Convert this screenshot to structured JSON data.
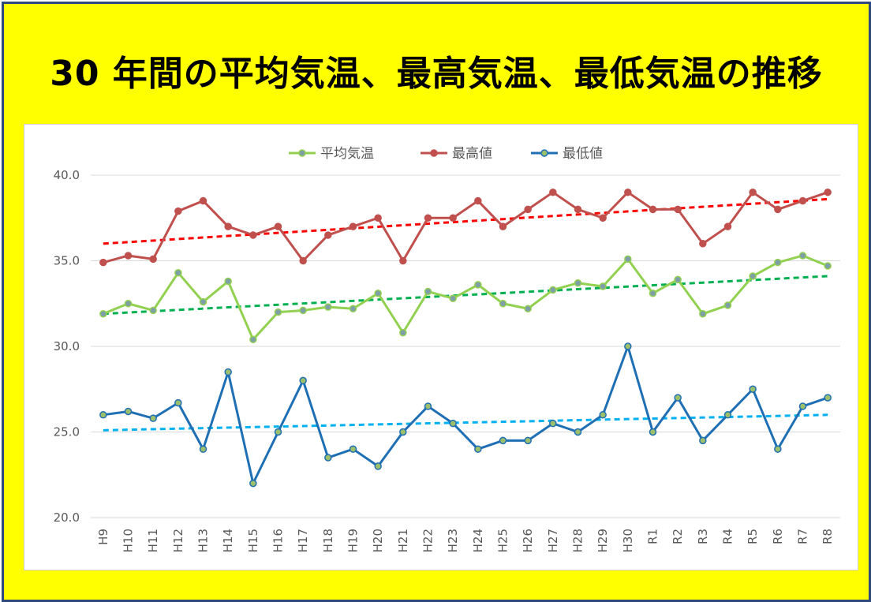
{
  "title": "30 年間の平均気温、最高気温、最低気温の推移",
  "chart_data": {
    "type": "line",
    "title": "",
    "xlabel": "",
    "ylabel": "",
    "categories": [
      "H9",
      "H10",
      "H11",
      "H12",
      "H13",
      "H14",
      "H15",
      "H16",
      "H17",
      "H18",
      "H19",
      "H20",
      "H21",
      "H22",
      "H23",
      "H24",
      "H25",
      "H26",
      "H27",
      "H28",
      "H29",
      "H30",
      "R1",
      "R2",
      "R3",
      "R4",
      "R5",
      "R6",
      "R7",
      "R8"
    ],
    "ylim": [
      20,
      40
    ],
    "yticks": [
      "20.0",
      "25.0",
      "30.0",
      "35.0",
      "40.0"
    ],
    "grid": true,
    "legend_position": "top",
    "series": [
      {
        "name": "平均気温",
        "color": "#92d050",
        "values": [
          31.9,
          32.5,
          32.1,
          34.3,
          32.6,
          33.8,
          30.4,
          32.0,
          32.1,
          32.3,
          32.2,
          33.1,
          30.8,
          33.2,
          32.8,
          33.6,
          32.5,
          32.2,
          33.3,
          33.7,
          33.5,
          35.1,
          33.1,
          33.9,
          31.9,
          32.4,
          34.1,
          34.9,
          35.3,
          34.7
        ]
      },
      {
        "name": "最高値",
        "color": "#c0504d",
        "values": [
          34.9,
          35.3,
          35.1,
          37.9,
          38.5,
          37.0,
          36.5,
          37.0,
          35.0,
          36.5,
          37.0,
          37.5,
          35.0,
          37.5,
          37.5,
          38.5,
          37.0,
          38.0,
          39.0,
          38.0,
          37.5,
          39.0,
          38.0,
          38.0,
          36.0,
          37.0,
          39.0,
          38.0,
          38.5,
          39.0
        ]
      },
      {
        "name": "最低値",
        "color": "#1f6fb4",
        "values": [
          26.0,
          26.2,
          25.8,
          26.7,
          24.0,
          28.5,
          22.0,
          25.0,
          28.0,
          23.5,
          24.0,
          23.0,
          25.0,
          26.5,
          25.5,
          24.0,
          24.5,
          24.5,
          25.5,
          25.0,
          26.0,
          30.0,
          25.0,
          27.0,
          24.5,
          26.0,
          27.5,
          24.0,
          26.5,
          27.0
        ]
      }
    ],
    "trendlines": [
      {
        "series": "最高値",
        "color": "#ff0000",
        "start": 36.0,
        "end": 38.6
      },
      {
        "series": "平均気温",
        "color": "#00b050",
        "start": 31.9,
        "end": 34.1
      },
      {
        "series": "最低値",
        "color": "#00b0f0",
        "start": 25.1,
        "end": 26.0
      }
    ]
  }
}
